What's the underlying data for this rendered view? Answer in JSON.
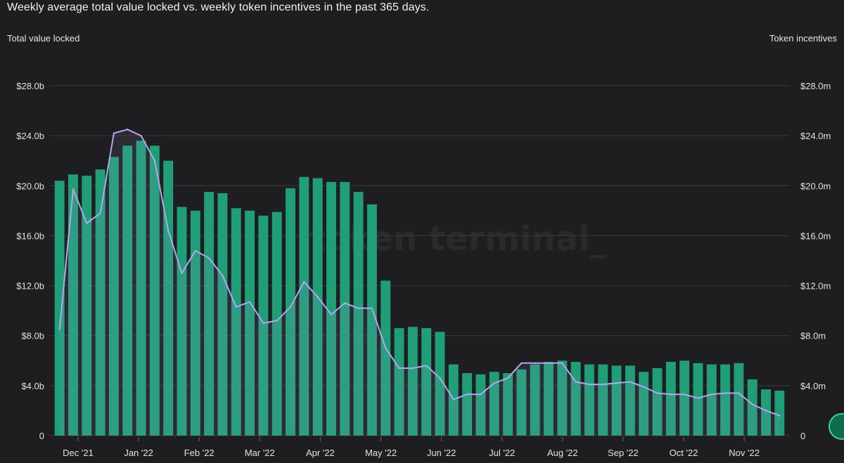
{
  "title": "Weekly average total value locked vs. weekly token incentives in the past 365 days.",
  "watermark": "token terminal_",
  "colors": {
    "bar": "#1f9e77",
    "line": "#b4a7ec",
    "grid": "#3a3a3c",
    "background": "#1e1e20"
  },
  "chart_data": {
    "type": "bar+line",
    "ylabel_left": "Total value locked",
    "ylabel_right": "Token incentives",
    "ylim_left": [
      0,
      28
    ],
    "ylim_right": [
      0,
      28
    ],
    "y_ticks_left": [
      "0",
      "$4.0b",
      "$8.0b",
      "$12.0b",
      "$16.0b",
      "$20.0b",
      "$24.0b",
      "$28.0b"
    ],
    "y_ticks_right": [
      "0",
      "$4.0m",
      "$8.0m",
      "$12.0m",
      "$16.0m",
      "$20.0m",
      "$24.0m",
      "$28.0m"
    ],
    "x_ticks": [
      "Dec '21",
      "Jan '22",
      "Feb '22",
      "Mar '22",
      "Apr '22",
      "May '22",
      "Jun '22",
      "Jul '22",
      "Aug '22",
      "Sep '22",
      "Oct '22",
      "Nov '22"
    ],
    "grid": true,
    "series": [
      {
        "name": "Total value locked",
        "kind": "bar",
        "unit": "$b",
        "values": [
          20.4,
          20.9,
          20.8,
          21.3,
          22.3,
          23.2,
          23.6,
          23.2,
          22.0,
          18.3,
          18.0,
          19.5,
          19.4,
          18.2,
          18.0,
          17.6,
          17.9,
          19.8,
          20.7,
          20.6,
          20.3,
          20.3,
          19.5,
          18.5,
          12.4,
          8.6,
          8.7,
          8.6,
          8.3,
          5.7,
          5.0,
          4.9,
          5.1,
          5.0,
          5.3,
          5.7,
          5.9,
          6.0,
          5.9,
          5.7,
          5.7,
          5.6,
          5.6,
          5.1,
          5.4,
          5.9,
          6.0,
          5.8,
          5.7,
          5.7,
          5.8,
          4.5,
          3.7,
          3.6
        ]
      },
      {
        "name": "Token incentives",
        "kind": "line",
        "unit": "$m",
        "values": [
          8.5,
          19.7,
          17.0,
          17.8,
          24.2,
          24.5,
          24.0,
          22.0,
          16.4,
          13.0,
          14.8,
          14.2,
          12.8,
          10.3,
          10.7,
          9.0,
          9.2,
          10.3,
          12.3,
          11.1,
          9.7,
          10.6,
          10.2,
          10.2,
          7.0,
          5.4,
          5.4,
          5.6,
          4.6,
          2.9,
          3.3,
          3.3,
          4.2,
          4.6,
          5.8,
          5.8,
          5.8,
          5.8,
          4.3,
          4.1,
          4.1,
          4.2,
          4.3,
          3.9,
          3.4,
          3.3,
          3.3,
          3.0,
          3.3,
          3.4,
          3.4,
          2.5,
          2.0,
          1.6
        ]
      }
    ]
  }
}
